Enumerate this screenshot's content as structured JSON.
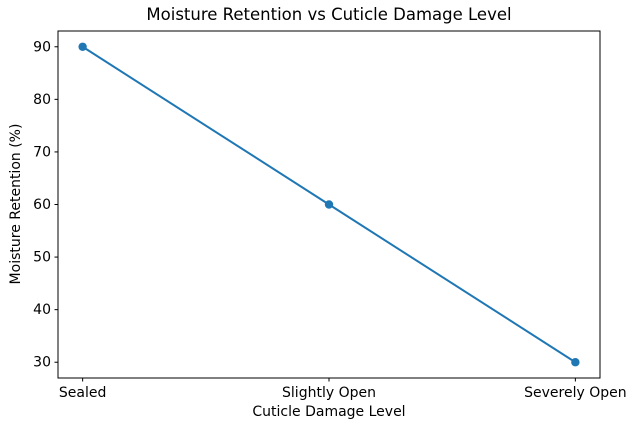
{
  "chart_data": {
    "type": "line",
    "title": "Moisture Retention vs Cuticle Damage Level",
    "xlabel": "Cuticle Damage Level",
    "ylabel": "Moisture Retention (%)",
    "categories": [
      "Sealed",
      "Slightly Open",
      "Severely Open"
    ],
    "series": [
      {
        "name": "Moisture Retention",
        "values": [
          90,
          60,
          30
        ]
      }
    ],
    "yticks": [
      30,
      40,
      50,
      60,
      70,
      80,
      90
    ],
    "ylim": [
      27,
      93
    ],
    "grid": false,
    "legend_position": "none",
    "line_color": "#1f77b4",
    "marker_color": "#1f77b4",
    "marker_shape": "circle",
    "axis_color": "#000000",
    "text_color": "#000000",
    "background": "#ffffff"
  }
}
